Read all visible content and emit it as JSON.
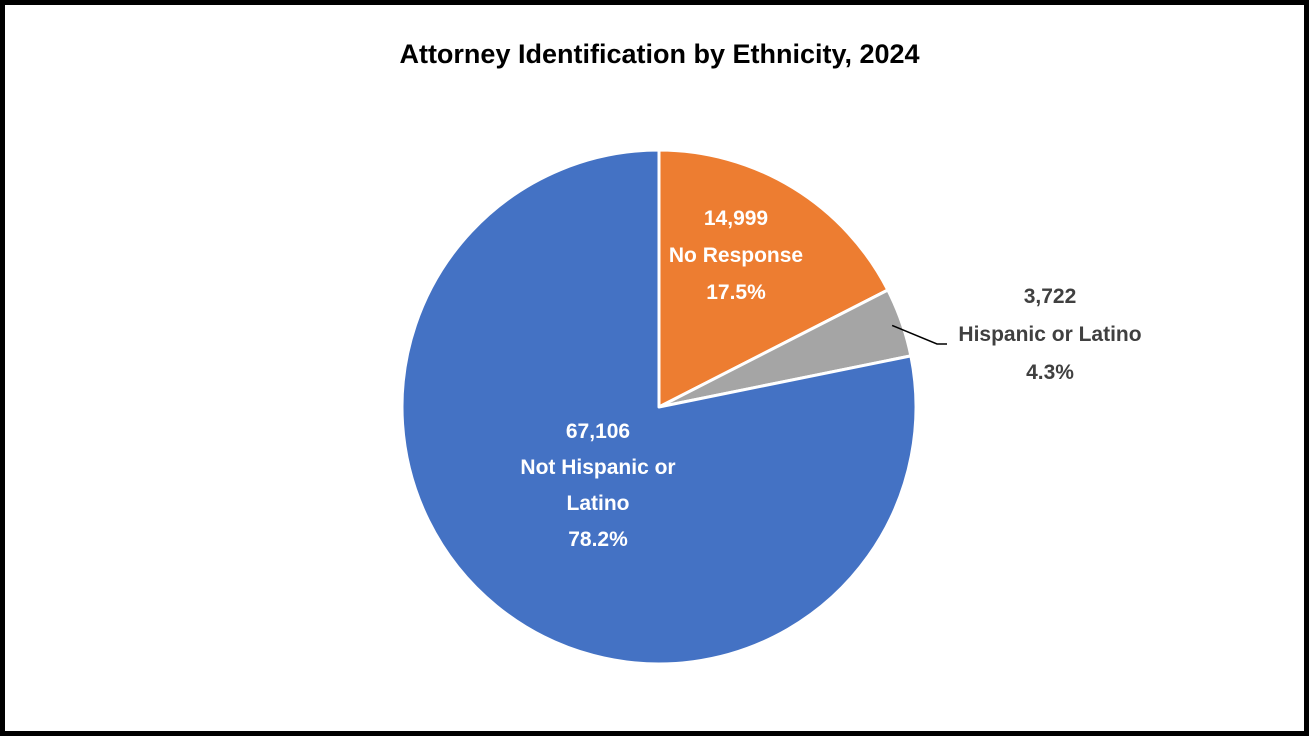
{
  "chart_data": {
    "type": "pie",
    "title": "Attorney Identification by Ethnicity, 2024",
    "slices": [
      {
        "name": "No Response",
        "value": 14999,
        "value_label": "14,999",
        "percent_label": "17.5%",
        "color": "#ED7D31",
        "label_lines": [
          "14,999",
          "No Response",
          "17.5%"
        ],
        "label_color": "#ffffff"
      },
      {
        "name": "Hispanic or Latino",
        "value": 3722,
        "value_label": "3,722",
        "percent_label": "4.3%",
        "color": "#A5A5A5",
        "label_lines": [
          "3,722",
          "Hispanic or Latino",
          "4.3%"
        ],
        "label_color": "#404040"
      },
      {
        "name": "Not Hispanic or Latino",
        "value": 67106,
        "value_label": "67,106",
        "percent_label": "78.2%",
        "color": "#4472C4",
        "label_lines": [
          "67,106",
          "Not Hispanic or",
          "Latino",
          "78.2%"
        ],
        "label_color": "#ffffff"
      }
    ]
  }
}
